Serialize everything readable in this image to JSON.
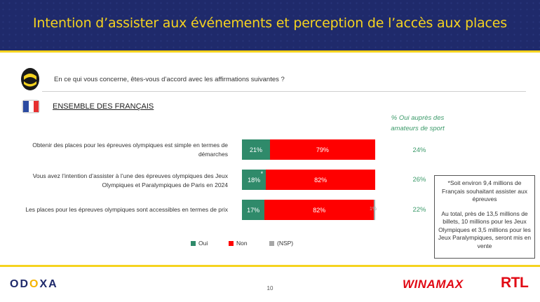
{
  "header": {
    "title": "Intention d’assister aux événements et perception de l’accès aux places"
  },
  "question": "En ce qui vous concerne, êtes-vous d’accord avec les affirmations suivantes ?",
  "section": "ENSEMBLE DES FRANÇAIS",
  "sport_column_header": "% Oui auprès des amateurs de sport",
  "chart_data": {
    "type": "bar",
    "orientation": "horizontal",
    "stacked": true,
    "categories": [
      "Obtenir des places pour les épreuves olympiques est simple en termes de démarches",
      "Vous avez l’intention d’assister à l’une des épreuves olympiques des Jeux Olympiques et Paralympiques de Paris en 2024",
      "Les places pour les épreuves olympiques sont accessibles en termes de prix"
    ],
    "series": [
      {
        "name": "Oui",
        "color": "#2f8a6a",
        "values": [
          21,
          18,
          17
        ],
        "labels": [
          "21%",
          "18%",
          "17%"
        ]
      },
      {
        "name": "Non",
        "color": "#ff0000",
        "values": [
          79,
          82,
          82
        ],
        "labels": [
          "79%",
          "82%",
          "82%"
        ]
      },
      {
        "name": "(NSP)",
        "color": "#a6a6a6",
        "values": [
          0,
          0,
          1
        ],
        "labels": [
          "",
          "",
          "1%"
        ]
      }
    ],
    "annotations": {
      "star_row": 1,
      "star": "*"
    },
    "sport_yes": [
      "24%",
      "26%",
      "22%"
    ],
    "xlim": [
      0,
      100
    ]
  },
  "note": {
    "line1": "*Soit environ 9,4 millions de Français souhaitant assister aux épreuves",
    "line2": "Au total, près de 13,5 millions de billets, 10 millions pour les Jeux Olympiques et 3,5 millions pour les Jeux Paralympiques, seront mis en vente"
  },
  "footer": {
    "brand_a": "OD",
    "brand_b": "O",
    "brand_c": "XA",
    "page": "10",
    "sponsor1": "WINAMAX",
    "sponsor2": "RTL"
  }
}
